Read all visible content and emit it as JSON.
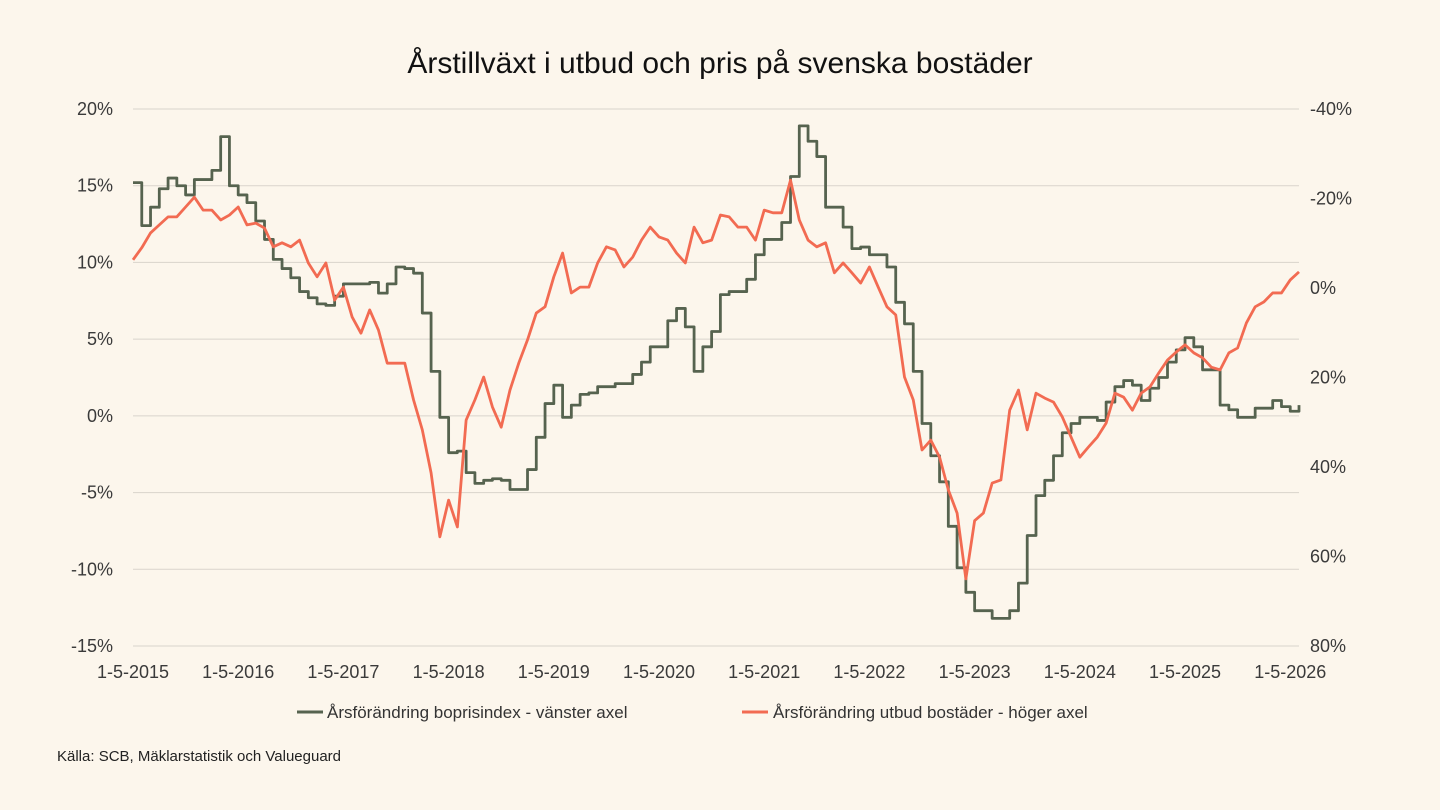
{
  "chart_data": {
    "type": "line",
    "title": "Årstillväxt i utbud och pris på svenska bostäder",
    "x_start": "2015-05",
    "x_frequency": "monthly",
    "x_tick_labels": [
      "1-5-2015",
      "1-5-2016",
      "1-5-2017",
      "1-5-2018",
      "1-5-2019",
      "1-5-2020",
      "1-5-2021",
      "1-5-2022",
      "1-5-2023",
      "1-5-2024",
      "1-5-2025",
      "1-5-2026"
    ],
    "y_left": {
      "ylim": [
        -15,
        20
      ],
      "ticks": [
        20,
        15,
        10,
        5,
        0,
        -5,
        -10,
        -15
      ],
      "tick_labels": [
        "20%",
        "15%",
        "10%",
        "5%",
        "0%",
        "-5%",
        "-10%",
        "-15%"
      ]
    },
    "y_right": {
      "ylim": [
        -40,
        80
      ],
      "inverted": true,
      "ticks": [
        -40,
        -20,
        0,
        20,
        40,
        60,
        80
      ],
      "tick_labels": [
        "-40%",
        "-20%",
        "0%",
        "20%",
        "40%",
        "60%",
        "80%"
      ]
    },
    "grid": true,
    "legend_position": "bottom",
    "series": [
      {
        "name": "Årsförändring boprisindex - vänster axel",
        "axis": "left",
        "style": "step",
        "color": "#56634f",
        "values": [
          15.2,
          12.4,
          13.6,
          14.8,
          15.5,
          15.0,
          14.4,
          15.4,
          15.4,
          16.0,
          18.2,
          15.0,
          14.4,
          13.9,
          12.7,
          11.5,
          10.2,
          9.6,
          9.0,
          8.1,
          7.7,
          7.3,
          7.2,
          7.8,
          8.6,
          8.6,
          8.6,
          8.7,
          8.0,
          8.6,
          9.7,
          9.6,
          9.3,
          6.7,
          2.9,
          -0.1,
          -2.4,
          -2.3,
          -3.7,
          -4.4,
          -4.2,
          -4.1,
          -4.2,
          -4.8,
          -4.8,
          -3.5,
          -1.4,
          0.8,
          2.0,
          -0.1,
          0.7,
          1.4,
          1.5,
          1.9,
          1.9,
          2.1,
          2.1,
          2.7,
          3.5,
          4.5,
          4.5,
          6.2,
          7.0,
          5.8,
          2.9,
          4.5,
          5.5,
          7.9,
          8.1,
          8.1,
          8.9,
          10.5,
          11.5,
          11.5,
          12.6,
          15.6,
          18.9,
          17.9,
          16.9,
          13.6,
          13.6,
          12.3,
          10.9,
          11.0,
          10.5,
          10.5,
          9.7,
          7.4,
          6.0,
          2.9,
          -0.5,
          -2.6,
          -4.3,
          -7.2,
          -9.9,
          -11.5,
          -12.7,
          -12.7,
          -13.2,
          -13.2,
          -12.7,
          -10.9,
          -7.8,
          -5.2,
          -4.2,
          -2.6,
          -1.1,
          -0.5,
          -0.1,
          -0.1,
          -0.3,
          0.9,
          1.9,
          2.3,
          2.0,
          1.0,
          1.8,
          2.5,
          3.5,
          4.3,
          5.1,
          4.5,
          3.0,
          3.0,
          0.7,
          0.4,
          -0.1,
          -0.1,
          0.5,
          0.5,
          1.0,
          0.6,
          0.3,
          0.7
        ]
      },
      {
        "name": "Årsförändring utbud bostäder - höger axel",
        "axis": "right",
        "style": "line",
        "color": "#f26b52",
        "values": [
          -6.3,
          -9.0,
          -12.3,
          -14.1,
          -15.9,
          -15.9,
          -18.1,
          -20.3,
          -17.4,
          -17.4,
          -15.2,
          -16.3,
          -18.1,
          -14.1,
          -14.5,
          -13.4,
          -9.2,
          -10.1,
          -9.2,
          -10.7,
          -5.6,
          -2.5,
          -5.6,
          2.7,
          -0.2,
          6.5,
          10.1,
          4.9,
          9.4,
          16.8,
          16.8,
          16.8,
          25.0,
          31.7,
          41.3,
          55.6,
          47.4,
          53.4,
          29.5,
          25.0,
          19.9,
          26.6,
          31.1,
          22.8,
          16.8,
          11.6,
          5.6,
          4.2,
          -2.5,
          -7.8,
          1.1,
          -0.2,
          -0.2,
          -5.6,
          -9.2,
          -8.5,
          -4.7,
          -6.9,
          -10.7,
          -13.6,
          -11.4,
          -10.7,
          -7.8,
          -5.6,
          -13.6,
          -10.1,
          -10.7,
          -16.3,
          -15.9,
          -13.6,
          -13.6,
          -10.7,
          -17.4,
          -16.8,
          -16.8,
          -24.1,
          -15.2,
          -10.7,
          -9.2,
          -10.1,
          -3.4,
          -5.6,
          -3.4,
          -1.1,
          -4.7,
          -0.2,
          4.2,
          6.0,
          19.9,
          25.0,
          36.2,
          34.0,
          37.8,
          45.1,
          50.3,
          65.0,
          52.0,
          50.3,
          43.6,
          42.9,
          27.3,
          22.8,
          31.7,
          23.5,
          24.6,
          25.5,
          28.8,
          33.3,
          37.8,
          35.5,
          33.3,
          30.2,
          23.5,
          24.4,
          27.3,
          23.5,
          22.1,
          19.0,
          16.1,
          14.3,
          12.7,
          14.5,
          15.6,
          17.7,
          18.3,
          14.5,
          13.4,
          7.8,
          4.2,
          3.1,
          1.1,
          1.1,
          -1.8,
          -3.6
        ]
      }
    ],
    "source": "Källa: SCB, Mäklarstatistik och Valueguard"
  }
}
